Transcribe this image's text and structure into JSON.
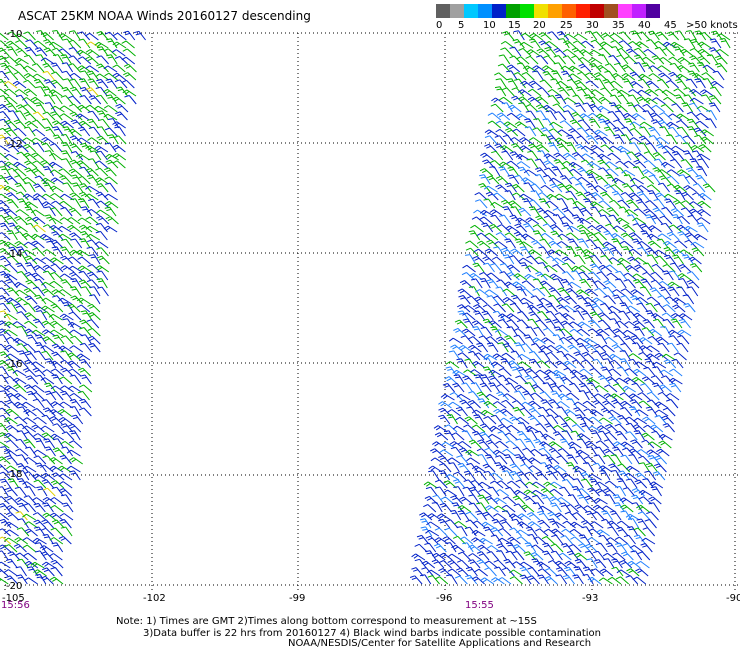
{
  "title": "ASCAT 25KM NOAA Winds 20160127 descending",
  "legend": {
    "colors": [
      "#606060",
      "#a0a0a0",
      "#00c8ff",
      "#0090ff",
      "#0020c8",
      "#00a000",
      "#00e000",
      "#f0e000",
      "#ffa000",
      "#ff6000",
      "#ff2000",
      "#c00000",
      "#a05020",
      "#ff40ff",
      "#c020ff",
      "#5000a0"
    ],
    "labels": [
      "0",
      "5",
      "10",
      "15",
      "20",
      "25",
      "30",
      "35",
      "40",
      "45",
      ">50 knots"
    ]
  },
  "map": {
    "lon_labels": [
      "-105",
      "-102",
      "-99",
      "-96",
      "-93",
      "-90"
    ],
    "lat_labels": [
      "-10",
      "-12",
      "-14",
      "-16",
      "-18",
      "-20"
    ],
    "left_pass_time": "15:56",
    "right_pass_time": "15:55",
    "barb_colors": {
      "blue": "#0020c8",
      "green": "#00b000",
      "lightblue": "#2080ff",
      "yellow": "#e0d000"
    }
  },
  "notes": {
    "line1": "Note: 1) Times are GMT 2)Times along bottom correspond to measurement at ~15S",
    "line2": "3)Data buffer is 22 hrs from 20160127 4) Black wind barbs indicate possible contamination",
    "line3": "NOAA/NESDIS/Center for Satellite Applications and Research"
  }
}
